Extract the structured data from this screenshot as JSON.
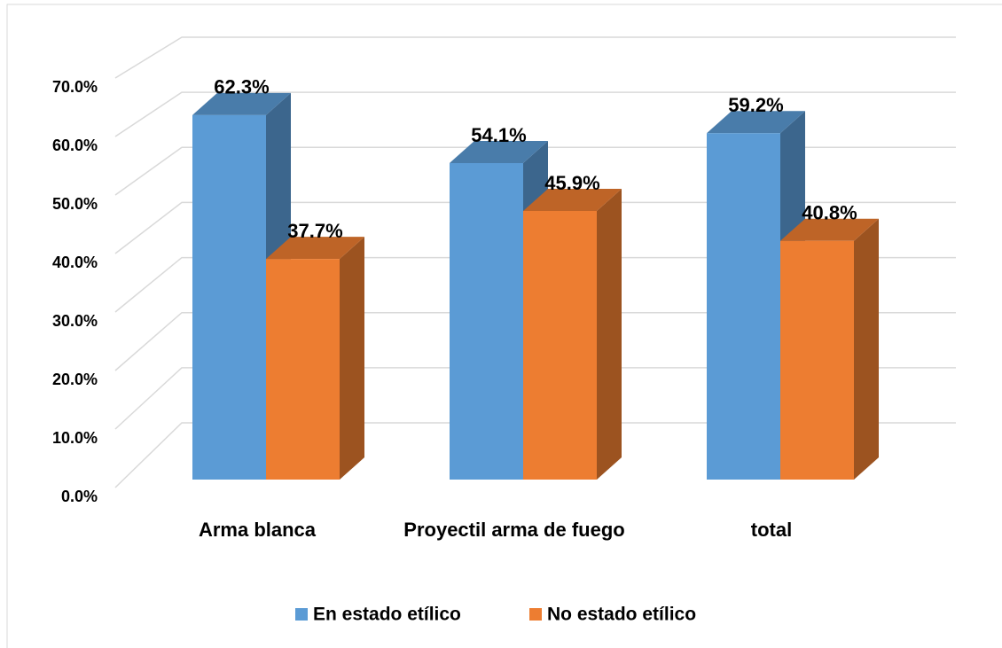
{
  "chart_data": {
    "type": "bar3d",
    "categories": [
      "Arma blanca",
      "Proyectil arma de fuego",
      "total"
    ],
    "series": [
      {
        "name": "En estado etílico",
        "color": "#5b9bd5",
        "values": [
          62.3,
          54.1,
          59.2
        ],
        "value_labels": [
          "62.3%",
          "54.1%",
          "59.2%"
        ]
      },
      {
        "name": "No estado etílico",
        "color": "#ed7d31",
        "values": [
          37.7,
          45.9,
          40.8
        ],
        "value_labels": [
          "37.7%",
          "45.9%",
          "40.8%"
        ]
      }
    ],
    "ylim": [
      0,
      70
    ],
    "yticks": [
      {
        "value": 0,
        "label": "0.0%"
      },
      {
        "value": 10,
        "label": "10.0%"
      },
      {
        "value": 20,
        "label": "20.0%"
      },
      {
        "value": 30,
        "label": "30.0%"
      },
      {
        "value": 40,
        "label": "40.0%"
      },
      {
        "value": 50,
        "label": "50.0%"
      },
      {
        "value": 60,
        "label": "60.0%"
      },
      {
        "value": 70,
        "label": "70.0%"
      }
    ],
    "grid": true,
    "legend": "bottom"
  }
}
